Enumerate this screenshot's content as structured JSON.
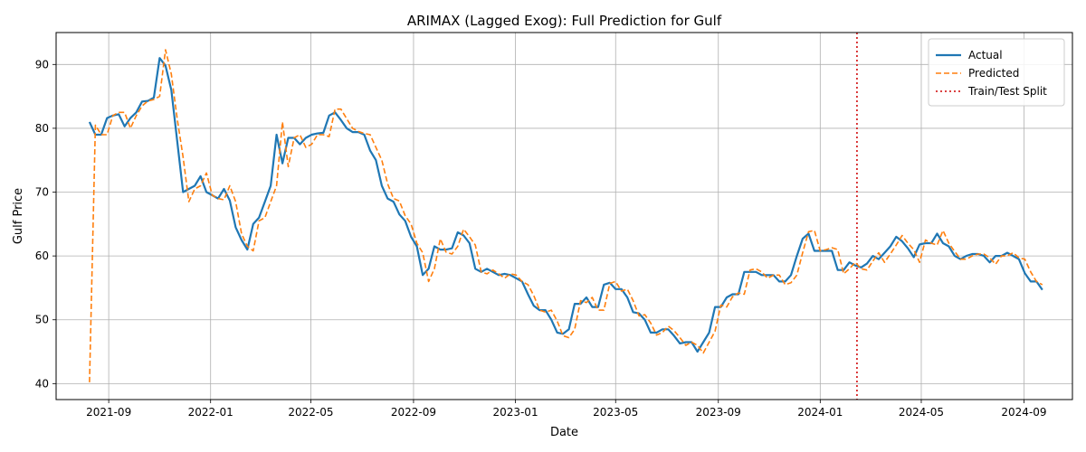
{
  "chart_data": {
    "type": "line",
    "title": "ARIMAX (Lagged Exog): Full Prediction for Gulf",
    "xlabel": "Date",
    "ylabel": "Gulf Price",
    "xlim": [
      "2021-06-30",
      "2024-10-29"
    ],
    "ylim": [
      37.5,
      95
    ],
    "grid": true,
    "legend_position": "top-right",
    "x_ticks": [
      {
        "date": "2021-09-01",
        "label": "2021-09"
      },
      {
        "date": "2022-01-01",
        "label": "2022-01"
      },
      {
        "date": "2022-05-01",
        "label": "2022-05"
      },
      {
        "date": "2022-09-01",
        "label": "2022-09"
      },
      {
        "date": "2023-01-01",
        "label": "2023-01"
      },
      {
        "date": "2023-05-01",
        "label": "2023-05"
      },
      {
        "date": "2023-09-01",
        "label": "2023-09"
      },
      {
        "date": "2024-01-01",
        "label": "2024-01"
      },
      {
        "date": "2024-05-01",
        "label": "2024-05"
      },
      {
        "date": "2024-09-01",
        "label": "2024-09"
      }
    ],
    "y_ticks": [
      40,
      50,
      60,
      70,
      80,
      90
    ],
    "split": {
      "name": "Train/Test Split",
      "date": "2024-02-14",
      "color": "#d62728"
    },
    "series": [
      {
        "name": "Actual",
        "color": "#1f77b4",
        "style": "solid",
        "x": [
          "2021-08-09",
          "2021-08-16",
          "2021-08-23",
          "2021-08-30",
          "2021-09-06",
          "2021-09-13",
          "2021-09-20",
          "2021-09-27",
          "2021-10-04",
          "2021-10-11",
          "2021-10-18",
          "2021-10-25",
          "2021-11-01",
          "2021-11-08",
          "2021-11-15",
          "2021-11-22",
          "2021-11-29",
          "2021-12-06",
          "2021-12-13",
          "2021-12-20",
          "2021-12-27",
          "2022-01-03",
          "2022-01-10",
          "2022-01-17",
          "2022-01-24",
          "2022-01-31",
          "2022-02-07",
          "2022-02-14",
          "2022-02-21",
          "2022-02-28",
          "2022-03-07",
          "2022-03-14",
          "2022-03-21",
          "2022-03-28",
          "2022-04-04",
          "2022-04-11",
          "2022-04-18",
          "2022-04-25",
          "2022-05-02",
          "2022-05-09",
          "2022-05-16",
          "2022-05-23",
          "2022-05-30",
          "2022-06-06",
          "2022-06-13",
          "2022-06-20",
          "2022-06-27",
          "2022-07-04",
          "2022-07-11",
          "2022-07-18",
          "2022-07-25",
          "2022-08-01",
          "2022-08-08",
          "2022-08-15",
          "2022-08-22",
          "2022-08-29",
          "2022-09-05",
          "2022-09-12",
          "2022-09-19",
          "2022-09-26",
          "2022-10-03",
          "2022-10-10",
          "2022-10-17",
          "2022-10-24",
          "2022-10-31",
          "2022-11-07",
          "2022-11-14",
          "2022-11-21",
          "2022-11-28",
          "2022-12-05",
          "2022-12-12",
          "2022-12-19",
          "2022-12-26",
          "2023-01-02",
          "2023-01-09",
          "2023-01-16",
          "2023-01-23",
          "2023-01-30",
          "2023-02-06",
          "2023-02-13",
          "2023-02-20",
          "2023-02-27",
          "2023-03-06",
          "2023-03-13",
          "2023-03-20",
          "2023-03-27",
          "2023-04-03",
          "2023-04-10",
          "2023-04-17",
          "2023-04-24",
          "2023-05-01",
          "2023-05-08",
          "2023-05-15",
          "2023-05-22",
          "2023-05-29",
          "2023-06-05",
          "2023-06-12",
          "2023-06-19",
          "2023-06-26",
          "2023-07-03",
          "2023-07-10",
          "2023-07-17",
          "2023-07-24",
          "2023-07-31",
          "2023-08-07",
          "2023-08-14",
          "2023-08-21",
          "2023-08-28",
          "2023-09-04",
          "2023-09-11",
          "2023-09-18",
          "2023-09-25",
          "2023-10-02",
          "2023-10-09",
          "2023-10-16",
          "2023-10-23",
          "2023-10-30",
          "2023-11-06",
          "2023-11-13",
          "2023-11-20",
          "2023-11-27",
          "2023-12-04",
          "2023-12-11",
          "2023-12-18",
          "2023-12-25",
          "2024-01-01",
          "2024-01-08",
          "2024-01-15",
          "2024-01-22",
          "2024-01-29",
          "2024-02-05",
          "2024-02-12",
          "2024-02-19",
          "2024-02-26",
          "2024-03-04",
          "2024-03-11",
          "2024-03-18",
          "2024-03-25",
          "2024-04-01",
          "2024-04-08",
          "2024-04-15",
          "2024-04-22",
          "2024-04-29",
          "2024-05-06",
          "2024-05-13",
          "2024-05-20",
          "2024-05-27",
          "2024-06-03",
          "2024-06-10",
          "2024-06-17",
          "2024-06-24",
          "2024-07-01",
          "2024-07-08",
          "2024-07-15",
          "2024-07-22",
          "2024-07-29",
          "2024-08-05",
          "2024-08-12",
          "2024-08-19",
          "2024-08-26",
          "2024-09-02",
          "2024-09-09",
          "2024-09-16",
          "2024-09-23"
        ],
        "values": [
          81,
          79,
          79,
          81.6,
          82,
          82.2,
          80.3,
          81.6,
          82.5,
          84.2,
          84.3,
          84.8,
          91,
          89.8,
          86,
          78,
          70,
          70.5,
          71,
          72.5,
          70,
          69.5,
          69,
          70.5,
          68.7,
          64.5,
          62.5,
          61,
          65,
          66,
          68.5,
          71,
          79,
          74.5,
          78.5,
          78.5,
          77.5,
          78.5,
          79,
          79.2,
          79.3,
          82,
          82.5,
          81.3,
          80,
          79.4,
          79.4,
          79,
          76.5,
          75,
          71,
          69,
          68.5,
          66.5,
          65.5,
          63,
          61.5,
          57,
          58,
          61.5,
          61,
          61,
          61.2,
          63.7,
          63.2,
          62,
          58,
          57.5,
          58,
          57.5,
          57,
          57.2,
          57,
          56.5,
          56,
          54,
          52.2,
          51.5,
          51.5,
          50,
          48,
          47.8,
          48.5,
          52.5,
          52.5,
          53.5,
          52,
          52,
          55.5,
          55.8,
          54.8,
          54.8,
          53.5,
          51.2,
          51,
          50,
          48,
          48,
          48.5,
          48.5,
          47.5,
          46.3,
          46.5,
          46.5,
          45,
          46.5,
          48,
          52,
          52,
          53.5,
          54,
          54,
          57.5,
          57.5,
          57.5,
          57,
          57,
          57,
          56,
          56,
          57,
          60,
          62.7,
          63.5,
          60.8,
          60.8,
          60.8,
          60.8,
          57.8,
          57.8,
          59,
          58.5,
          58.2,
          58.8,
          60,
          59.5,
          60.5,
          61.5,
          63,
          62.3,
          61.2,
          59.8,
          61.8,
          62,
          62,
          63.5,
          62,
          61.5,
          60,
          59.5,
          60,
          60.3,
          60.3,
          60,
          59,
          60,
          60,
          60.5,
          60,
          59.5,
          57.3,
          56,
          56,
          54.7
        ]
      },
      {
        "name": "Predicted",
        "color": "#ff7f0e",
        "style": "dashed",
        "x": [
          "2021-08-09",
          "2021-08-16",
          "2021-08-23",
          "2021-08-30",
          "2021-09-06",
          "2021-09-13",
          "2021-09-20",
          "2021-09-27",
          "2021-10-04",
          "2021-10-11",
          "2021-10-18",
          "2021-10-25",
          "2021-11-01",
          "2021-11-08",
          "2021-11-15",
          "2021-11-22",
          "2021-11-29",
          "2021-12-06",
          "2021-12-13",
          "2021-12-20",
          "2021-12-27",
          "2022-01-03",
          "2022-01-10",
          "2022-01-17",
          "2022-01-24",
          "2022-01-31",
          "2022-02-07",
          "2022-02-14",
          "2022-02-21",
          "2022-02-28",
          "2022-03-07",
          "2022-03-14",
          "2022-03-21",
          "2022-03-28",
          "2022-04-04",
          "2022-04-11",
          "2022-04-18",
          "2022-04-25",
          "2022-05-02",
          "2022-05-09",
          "2022-05-16",
          "2022-05-23",
          "2022-05-30",
          "2022-06-06",
          "2022-06-13",
          "2022-06-20",
          "2022-06-27",
          "2022-07-04",
          "2022-07-11",
          "2022-07-18",
          "2022-07-25",
          "2022-08-01",
          "2022-08-08",
          "2022-08-15",
          "2022-08-22",
          "2022-08-29",
          "2022-09-05",
          "2022-09-12",
          "2022-09-19",
          "2022-09-26",
          "2022-10-03",
          "2022-10-10",
          "2022-10-17",
          "2022-10-24",
          "2022-10-31",
          "2022-11-07",
          "2022-11-14",
          "2022-11-21",
          "2022-11-28",
          "2022-12-05",
          "2022-12-12",
          "2022-12-19",
          "2022-12-26",
          "2023-01-02",
          "2023-01-09",
          "2023-01-16",
          "2023-01-23",
          "2023-01-30",
          "2023-02-06",
          "2023-02-13",
          "2023-02-20",
          "2023-02-27",
          "2023-03-06",
          "2023-03-13",
          "2023-03-20",
          "2023-03-27",
          "2023-04-03",
          "2023-04-10",
          "2023-04-17",
          "2023-04-24",
          "2023-05-01",
          "2023-05-08",
          "2023-05-15",
          "2023-05-22",
          "2023-05-29",
          "2023-06-05",
          "2023-06-12",
          "2023-06-19",
          "2023-06-26",
          "2023-07-03",
          "2023-07-10",
          "2023-07-17",
          "2023-07-24",
          "2023-07-31",
          "2023-08-07",
          "2023-08-14",
          "2023-08-21",
          "2023-08-28",
          "2023-09-04",
          "2023-09-11",
          "2023-09-18",
          "2023-09-25",
          "2023-10-02",
          "2023-10-09",
          "2023-10-16",
          "2023-10-23",
          "2023-10-30",
          "2023-11-06",
          "2023-11-13",
          "2023-11-20",
          "2023-11-27",
          "2023-12-04",
          "2023-12-11",
          "2023-12-18",
          "2023-12-25",
          "2024-01-01",
          "2024-01-08",
          "2024-01-15",
          "2024-01-22",
          "2024-01-29",
          "2024-02-05",
          "2024-02-12",
          "2024-02-19",
          "2024-02-26",
          "2024-03-04",
          "2024-03-11",
          "2024-03-18",
          "2024-03-25",
          "2024-04-01",
          "2024-04-08",
          "2024-04-15",
          "2024-04-22",
          "2024-04-29",
          "2024-05-06",
          "2024-05-13",
          "2024-05-20",
          "2024-05-27",
          "2024-06-03",
          "2024-06-10",
          "2024-06-17",
          "2024-06-24",
          "2024-07-01",
          "2024-07-08",
          "2024-07-15",
          "2024-07-22",
          "2024-07-29",
          "2024-08-05",
          "2024-08-12",
          "2024-08-19",
          "2024-08-26",
          "2024-09-02",
          "2024-09-09",
          "2024-09-16",
          "2024-09-23"
        ],
        "values": [
          40.2,
          80.5,
          79,
          79,
          82,
          82.5,
          82.5,
          80,
          82,
          83.5,
          84.3,
          84.5,
          85,
          92.3,
          88.5,
          81.5,
          75.5,
          68.5,
          70.5,
          71,
          73,
          69.5,
          69,
          68.8,
          71,
          68.5,
          63.5,
          61.5,
          60.8,
          65.5,
          66,
          68.5,
          71,
          81,
          74,
          78.5,
          79,
          77,
          77.5,
          79,
          79,
          78.7,
          83,
          83,
          81.5,
          80,
          79.5,
          79.2,
          79,
          77,
          75,
          71.3,
          69,
          68.6,
          66.3,
          65,
          62,
          60.5,
          56,
          58,
          62.7,
          60.6,
          60.3,
          61.5,
          64.2,
          63,
          61.7,
          57.5,
          57.2,
          57.8,
          57.2,
          56.5,
          57.2,
          57,
          56,
          55.5,
          53.8,
          51.5,
          51.2,
          51.5,
          49.8,
          47.5,
          47.2,
          48.5,
          53,
          52.7,
          53.5,
          51.5,
          51.5,
          55.7,
          56,
          54.5,
          54.8,
          53,
          50.6,
          50.8,
          49.5,
          47.6,
          48,
          49,
          48.3,
          47.2,
          46,
          46.5,
          46,
          44.8,
          46.5,
          48.2,
          52.3,
          52,
          53.6,
          54.2,
          54,
          57.8,
          58,
          57.5,
          56.5,
          57,
          57,
          55.5,
          55.8,
          57,
          60.5,
          63.8,
          64,
          60.8,
          61,
          61.3,
          61,
          57.2,
          58,
          59,
          58,
          57.8,
          59.2,
          60.5,
          59,
          60.3,
          61.7,
          63.2,
          62,
          61,
          59,
          62.5,
          62,
          61.7,
          64,
          62,
          60.7,
          59.5,
          59.5,
          60,
          60.3,
          60.3,
          59.7,
          58.7,
          60,
          60,
          60.5,
          59.7,
          59.5,
          57.5,
          56,
          55.5
        ]
      }
    ]
  }
}
